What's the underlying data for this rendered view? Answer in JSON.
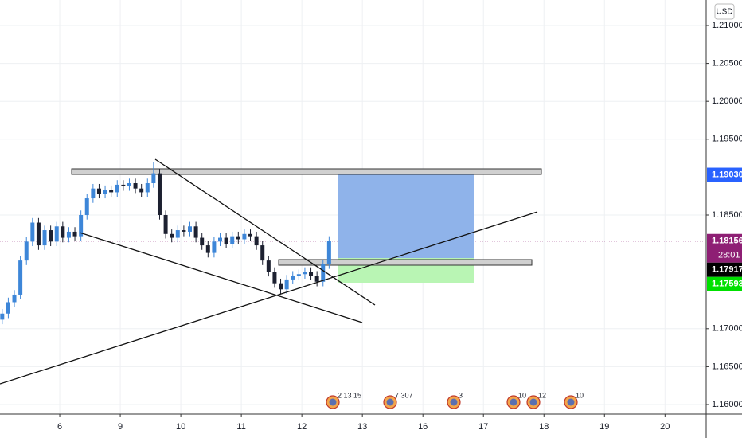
{
  "chart_data": {
    "type": "candlestick",
    "currency_button": "USD",
    "colors": {
      "up": "#3d86d8",
      "down": "#1c2030"
    },
    "grid": true,
    "xlim": [
      -0.987,
      10.68
    ],
    "xticks": [
      {
        "value": 0,
        "label": "6"
      },
      {
        "value": 1,
        "label": "9"
      },
      {
        "value": 2,
        "label": "10"
      },
      {
        "value": 3,
        "label": "11"
      },
      {
        "value": 4,
        "label": "12"
      },
      {
        "value": 5,
        "label": "13"
      },
      {
        "value": 6,
        "label": "16"
      },
      {
        "value": 7,
        "label": "17"
      },
      {
        "value": 8,
        "label": "18"
      },
      {
        "value": 9,
        "label": "19"
      },
      {
        "value": 10,
        "label": "20"
      }
    ],
    "ylim": [
      1.15874,
      1.21336
    ],
    "yticks": [
      {
        "value": 1.21,
        "label": "1.21000"
      },
      {
        "value": 1.205,
        "label": "1.20500"
      },
      {
        "value": 1.2,
        "label": "1.20000"
      },
      {
        "value": 1.195,
        "label": "1.19500"
      },
      {
        "value": 1.185,
        "label": "1.18500"
      },
      {
        "value": 1.17,
        "label": "1.17000"
      },
      {
        "value": 1.165,
        "label": "1.16500"
      },
      {
        "value": 1.16,
        "label": "1.16000"
      }
    ],
    "candles": {
      "x": [
        -0.95,
        -0.85,
        -0.75,
        -0.65,
        -0.55,
        -0.45,
        -0.35,
        -0.25,
        -0.15,
        -0.05,
        0.05,
        0.15,
        0.25,
        0.35,
        0.45,
        0.55,
        0.65,
        0.75,
        0.85,
        0.95,
        1.05,
        1.15,
        1.25,
        1.35,
        1.45,
        1.55,
        1.65,
        1.75,
        1.85,
        1.95,
        2.05,
        2.15,
        2.25,
        2.35,
        2.45,
        2.55,
        2.65,
        2.75,
        2.85,
        2.95,
        3.05,
        3.15,
        3.25,
        3.35,
        3.45,
        3.55,
        3.65,
        3.75,
        3.85,
        3.95,
        4.05,
        4.15,
        4.25,
        4.35,
        4.45
      ],
      "open": [
        1.1712,
        1.172,
        1.1735,
        1.1745,
        1.179,
        1.1815,
        1.184,
        1.181,
        1.183,
        1.1815,
        1.1835,
        1.182,
        1.1828,
        1.1822,
        1.185,
        1.1872,
        1.1885,
        1.1878,
        1.1883,
        1.188,
        1.189,
        1.1888,
        1.1892,
        1.1885,
        1.188,
        1.1892,
        1.1905,
        1.185,
        1.1825,
        1.182,
        1.183,
        1.1828,
        1.1835,
        1.182,
        1.181,
        1.18,
        1.1815,
        1.182,
        1.1812,
        1.1822,
        1.1818,
        1.1825,
        1.1822,
        1.181,
        1.179,
        1.1775,
        1.176,
        1.1752,
        1.1765,
        1.177,
        1.1772,
        1.1775,
        1.177,
        1.1762,
        1.1785
      ],
      "high": [
        1.1726,
        1.1741,
        1.1751,
        1.1796,
        1.1821,
        1.1846,
        1.1846,
        1.1836,
        1.1836,
        1.1841,
        1.1841,
        1.1834,
        1.1834,
        1.1856,
        1.1878,
        1.1891,
        1.1891,
        1.1889,
        1.1889,
        1.1896,
        1.1896,
        1.1898,
        1.1898,
        1.1891,
        1.1898,
        1.192,
        1.1911,
        1.1856,
        1.1831,
        1.1836,
        1.1836,
        1.1841,
        1.1841,
        1.1826,
        1.1816,
        1.1821,
        1.1826,
        1.1826,
        1.1828,
        1.1828,
        1.1831,
        1.1831,
        1.1828,
        1.1816,
        1.1796,
        1.1781,
        1.1766,
        1.1771,
        1.1776,
        1.1778,
        1.1781,
        1.1781,
        1.1776,
        1.1791,
        1.1822
      ],
      "low": [
        1.1706,
        1.1714,
        1.1729,
        1.1739,
        1.1784,
        1.1809,
        1.1804,
        1.1804,
        1.1809,
        1.1809,
        1.1814,
        1.1814,
        1.1816,
        1.1816,
        1.1844,
        1.1866,
        1.1872,
        1.1872,
        1.1874,
        1.1874,
        1.1882,
        1.1882,
        1.1879,
        1.1874,
        1.1874,
        1.1886,
        1.1844,
        1.1819,
        1.1814,
        1.1814,
        1.1822,
        1.1822,
        1.1814,
        1.1804,
        1.1794,
        1.1794,
        1.1809,
        1.1806,
        1.1806,
        1.1812,
        1.1812,
        1.1816,
        1.1804,
        1.1784,
        1.1769,
        1.1754,
        1.1746,
        1.1746,
        1.1759,
        1.1764,
        1.1766,
        1.1764,
        1.1756,
        1.1756,
        1.1779
      ],
      "close": [
        1.172,
        1.1735,
        1.1745,
        1.179,
        1.1815,
        1.184,
        1.181,
        1.183,
        1.1815,
        1.1835,
        1.182,
        1.1828,
        1.1822,
        1.185,
        1.1872,
        1.1885,
        1.1878,
        1.1883,
        1.188,
        1.189,
        1.1888,
        1.1892,
        1.1885,
        1.188,
        1.1892,
        1.1905,
        1.185,
        1.1825,
        1.182,
        1.183,
        1.1828,
        1.1835,
        1.182,
        1.181,
        1.18,
        1.1815,
        1.182,
        1.1812,
        1.1822,
        1.1818,
        1.1825,
        1.1822,
        1.181,
        1.179,
        1.1775,
        1.176,
        1.1752,
        1.1765,
        1.177,
        1.1772,
        1.1775,
        1.177,
        1.1762,
        1.1785,
        1.1816
      ]
    },
    "price_markers": [
      {
        "value": 1.1903,
        "label": "1.19030",
        "color": "#2962ff"
      },
      {
        "value": 1.18156,
        "label": "1.18156",
        "color": "#8e1f74",
        "dashed_line": true,
        "countdown": "28:01"
      },
      {
        "value": 1.17917,
        "label": "1.17917",
        "color": "#000000"
      },
      {
        "value": 1.17593,
        "label": "1.17593",
        "color": "#00e000"
      }
    ],
    "events": [
      "2 13 15",
      "7 307",
      "3",
      "10",
      "12",
      "10"
    ]
  }
}
